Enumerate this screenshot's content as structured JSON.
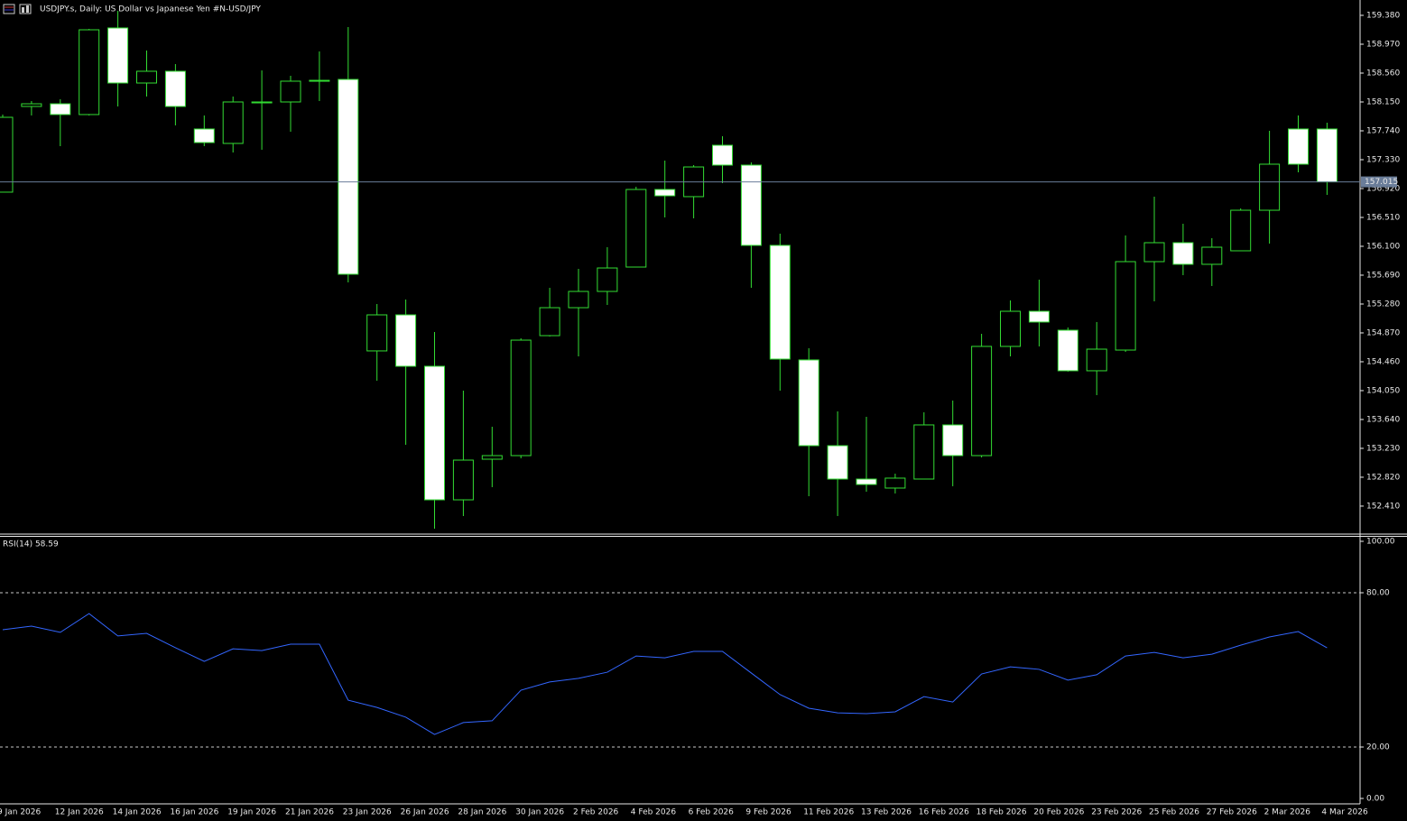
{
  "chart_data": [
    {
      "type": "candlestick",
      "title": "USDJPY.s, Daily:  US Dollar vs  Japanese Yen #N-USD/JPY",
      "categories": [
        "9 Jan 2026",
        null,
        "12 Jan 2026",
        null,
        "14 Jan 2026",
        null,
        "16 Jan 2026",
        null,
        "19 Jan 2026",
        null,
        "21 Jan 2026",
        null,
        "23 Jan 2026",
        null,
        "26 Jan 2026",
        null,
        "28 Jan 2026",
        null,
        "30 Jan 2026",
        null,
        "2 Feb 2026",
        null,
        "4 Feb 2026",
        null,
        "6 Feb 2026",
        null,
        "9 Feb 2026",
        null,
        "11 Feb 2026",
        null,
        "13 Feb 2026",
        null,
        "16 Feb 2026",
        null,
        "18 Feb 2026",
        null,
        "20 Feb 2026",
        null,
        "23 Feb 2026",
        null,
        "25 Feb 2026",
        null,
        "27 Feb 2026",
        null,
        "2 Mar 2026",
        null,
        "4 Mar 2026"
      ],
      "open": [
        156.869,
        158.086,
        158.124,
        157.971,
        159.201,
        158.419,
        158.586,
        157.766,
        157.561,
        158.137,
        158.15,
        158.445,
        158.47,
        154.614,
        155.126,
        154.396,
        152.499,
        153.076,
        153.127,
        154.831,
        155.228,
        155.459,
        155.805,
        156.907,
        156.805,
        157.535,
        157.253,
        156.113,
        154.486,
        153.268,
        152.794,
        152.666,
        152.794,
        153.563,
        153.127,
        154.678,
        155.177,
        154.908,
        154.332,
        154.626,
        155.882,
        156.151,
        155.844,
        156.036,
        156.612,
        157.766,
        157.766
      ],
      "high": [
        157.971,
        158.163,
        158.188,
        159.188,
        159.444,
        158.88,
        158.688,
        157.958,
        158.227,
        158.598,
        158.522,
        158.867,
        159.213,
        155.28,
        155.344,
        154.883,
        154.05,
        153.537,
        154.793,
        155.51,
        155.78,
        156.087,
        156.946,
        157.317,
        157.253,
        157.663,
        157.291,
        156.279,
        154.652,
        153.755,
        153.678,
        152.871,
        153.742,
        153.909,
        154.857,
        155.331,
        155.626,
        154.947,
        155.024,
        156.254,
        156.805,
        156.42,
        156.215,
        156.638,
        157.74,
        157.958,
        157.855
      ],
      "low": [
        156.869,
        157.958,
        157.522,
        157.958,
        158.086,
        158.227,
        157.817,
        157.522,
        157.432,
        157.471,
        157.727,
        158.163,
        155.587,
        154.191,
        153.281,
        152.089,
        152.269,
        152.679,
        153.089,
        154.819,
        154.537,
        155.267,
        155.805,
        156.51,
        156.497,
        156.997,
        155.51,
        154.05,
        152.551,
        152.269,
        152.615,
        152.589,
        152.794,
        152.692,
        153.102,
        154.537,
        154.678,
        154.319,
        153.986,
        154.601,
        155.318,
        155.69,
        155.536,
        156.036,
        156.138,
        157.15,
        156.83
      ],
      "close": [
        157.932,
        158.124,
        157.971,
        159.175,
        158.419,
        158.586,
        158.086,
        157.573,
        158.15,
        158.15,
        158.445,
        158.457,
        155.703,
        155.126,
        154.396,
        152.499,
        153.063,
        153.127,
        154.767,
        155.228,
        155.459,
        155.792,
        156.907,
        156.817,
        157.227,
        157.253,
        156.113,
        154.498,
        153.268,
        152.794,
        152.717,
        152.807,
        153.563,
        153.127,
        154.678,
        155.177,
        155.024,
        154.332,
        154.639,
        155.882,
        156.151,
        155.844,
        156.087,
        156.612,
        157.266,
        157.266,
        157.015
      ],
      "bull_color": "#000000",
      "bear_color": "#ffffff",
      "wick_color": "#33dd33",
      "last_price": 157.015,
      "last_price_color": "#6a7d99",
      "ylim": [
        152.025,
        159.598
      ],
      "yticks": [
        {
          "value": 159.38,
          "label": "159.380"
        },
        {
          "value": 158.97,
          "label": "158.970"
        },
        {
          "value": 158.56,
          "label": "158.560"
        },
        {
          "value": 158.15,
          "label": "158.150"
        },
        {
          "value": 157.74,
          "label": "157.740"
        },
        {
          "value": 157.33,
          "label": "157.330"
        },
        {
          "value": 156.92,
          "label": "156.920"
        },
        {
          "value": 156.51,
          "label": "156.510"
        },
        {
          "value": 156.1,
          "label": "156.100"
        },
        {
          "value": 155.69,
          "label": "155.690"
        },
        {
          "value": 155.28,
          "label": "155.280"
        },
        {
          "value": 154.87,
          "label": "154.870"
        },
        {
          "value": 154.46,
          "label": "154.460"
        },
        {
          "value": 154.05,
          "label": "154.050"
        },
        {
          "value": 153.64,
          "label": "153.640"
        },
        {
          "value": 153.23,
          "label": "153.230"
        },
        {
          "value": 152.82,
          "label": "152.820"
        },
        {
          "value": 152.41,
          "label": "152.410"
        }
      ]
    },
    {
      "type": "line",
      "title": "RSI(14) 58.59",
      "color": "#3366ff",
      "values": [
        65.6,
        67.0,
        64.6,
        71.9,
        63.2,
        64.2,
        58.6,
        53.3,
        58.2,
        57.5,
        60.0,
        60.0,
        38.2,
        35.4,
        31.6,
        24.9,
        29.5,
        30.2,
        42.1,
        45.3,
        46.7,
        49.1,
        55.4,
        54.7,
        57.2,
        57.2,
        48.8,
        40.4,
        35.1,
        33.3,
        33.0,
        33.7,
        39.6,
        37.5,
        48.4,
        51.2,
        50.2,
        46.0,
        48.1,
        55.4,
        56.8,
        54.7,
        56.1,
        59.6,
        62.8,
        64.9,
        58.59
      ],
      "ylim": [
        0,
        100
      ],
      "yticks": [
        {
          "value": 100,
          "label": "100.00"
        },
        {
          "value": 80,
          "label": "80.00"
        },
        {
          "value": 20,
          "label": "20.00"
        },
        {
          "value": 0,
          "label": "0.00"
        }
      ],
      "levels": [
        80,
        20
      ]
    }
  ]
}
